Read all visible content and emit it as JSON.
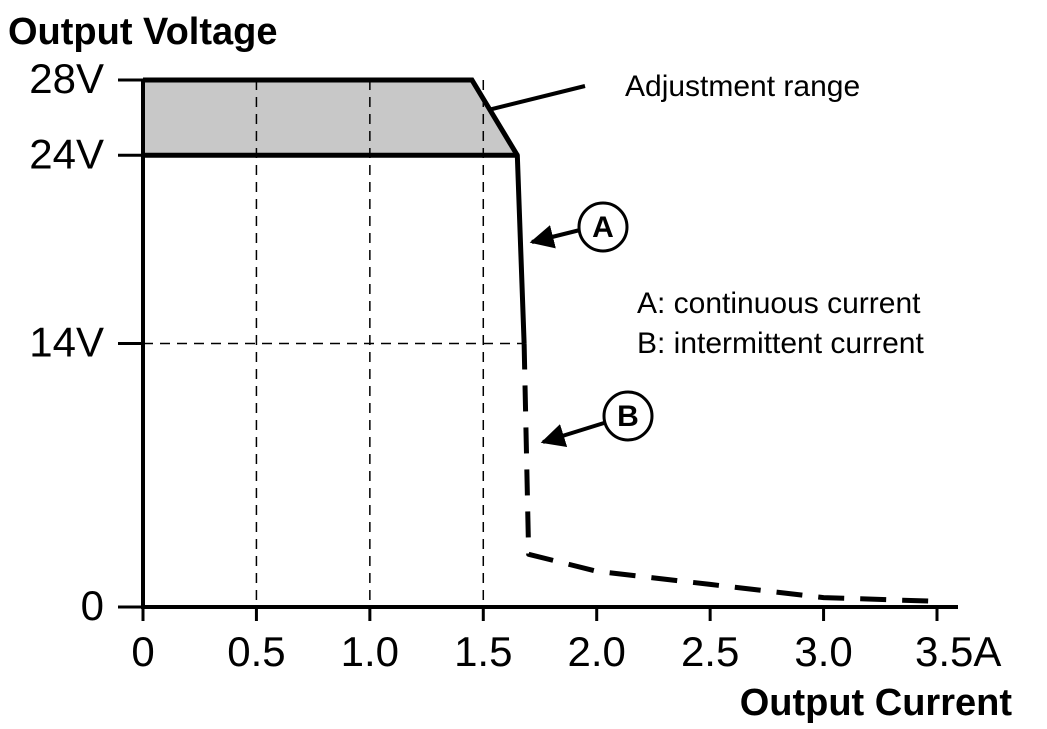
{
  "chart_data": {
    "type": "line",
    "title": "Output Voltage",
    "x_label": "Output Current",
    "xlim": [
      0,
      3.5
    ],
    "ylim": [
      0,
      28
    ],
    "xticks": [
      0,
      0.5,
      {
        "value": 1.0,
        "label": "1.0"
      },
      1.5,
      {
        "value": 2.0,
        "label": "2.0"
      },
      2.5,
      {
        "value": 3.0,
        "label": "3.0"
      },
      {
        "value": 3.5,
        "label": "3.5A"
      }
    ],
    "yticks": [
      0,
      {
        "value": 14,
        "label": "14V"
      },
      {
        "value": 24,
        "label": "24V"
      },
      {
        "value": 28,
        "label": "28V"
      }
    ],
    "grid": true,
    "adjustment_range": {
      "label": "Adjustment range",
      "color": "#c8c8c8",
      "x": [
        0,
        1.45,
        1.65
      ],
      "upper": [
        28,
        28,
        24
      ],
      "lower": [
        24,
        24,
        24
      ]
    },
    "series": [
      {
        "marker_label": "A",
        "description": "A: continuous current",
        "style": "solid",
        "color": "#000000",
        "x": [
          0,
          1.65,
          1.68
        ],
        "values": [
          24,
          24,
          14
        ]
      },
      {
        "marker_label": "B",
        "description": "B: intermittent current",
        "style": "dashed",
        "color": "#000000",
        "x": [
          1.68,
          1.7,
          2.0,
          2.5,
          3.0,
          3.5
        ],
        "values": [
          14,
          2.8,
          1.9,
          1.2,
          0.5,
          0.3
        ]
      }
    ]
  }
}
